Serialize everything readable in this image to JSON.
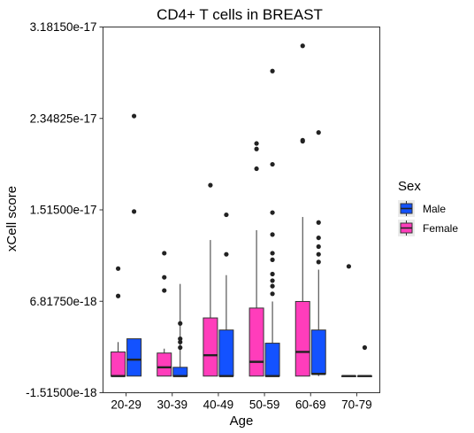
{
  "chart_data": {
    "type": "boxplot",
    "title": "CD4+ T cells in BREAST",
    "xlabel": "Age",
    "ylabel": "xCell score",
    "categories": [
      "20-29",
      "30-39",
      "40-49",
      "50-59",
      "60-69",
      "70-79"
    ],
    "yticks": [
      {
        "value": -1.515e-18,
        "label": "-1.51500e-18"
      },
      {
        "value": 6.8175e-18,
        "label": "6.81750e-18"
      },
      {
        "value": 1.515e-17,
        "label": "1.51500e-17"
      },
      {
        "value": 2.34825e-17,
        "label": "2.34825e-17"
      },
      {
        "value": 3.1815e-17,
        "label": "3.18150e-17"
      }
    ],
    "ylim": [
      -1.515e-18,
      3.1815e-17
    ],
    "legend": {
      "title": "Sex",
      "position": "right",
      "entries": [
        {
          "label": "Male",
          "color": "#1352FF"
        },
        {
          "label": "Female",
          "color": "#FF3DBB"
        }
      ]
    },
    "series": [
      {
        "name": "Female",
        "color": "#FF3DBB",
        "boxes": [
          {
            "category": "20-29",
            "q1": 0.0,
            "median": 0.0,
            "q3": 2.2e-18,
            "whisker_low": 0.0,
            "whisker_high": 3.1e-18,
            "outliers": [
              7.3e-18,
              9.8e-18
            ]
          },
          {
            "category": "30-39",
            "q1": 0.0,
            "median": 8e-19,
            "q3": 2.1e-18,
            "whisker_low": 0.0,
            "whisker_high": 2.5e-18,
            "outliers": [
              7.8e-18,
              9e-18,
              1.12e-17
            ]
          },
          {
            "category": "40-49",
            "q1": 0.0,
            "median": 1.9e-18,
            "q3": 5.3e-18,
            "whisker_low": 0.0,
            "whisker_high": 1.24e-17,
            "outliers": [
              1.74e-17
            ]
          },
          {
            "category": "50-59",
            "q1": 0.0,
            "median": 1.3e-18,
            "q3": 6.2e-18,
            "whisker_low": 0.0,
            "whisker_high": 1.33e-17,
            "outliers": [
              1.89e-17,
              2.07e-17,
              2.12e-17
            ]
          },
          {
            "category": "60-69",
            "q1": 0.0,
            "median": 2.2e-18,
            "q3": 6.8e-18,
            "whisker_low": 0.0,
            "whisker_high": 1.45e-17,
            "outliers": [
              2.14e-17,
              2.15e-17,
              3.01e-17
            ]
          },
          {
            "category": "70-79",
            "q1": 0.0,
            "median": 0.0,
            "q3": 0.0,
            "whisker_low": 0.0,
            "whisker_high": 0.0,
            "outliers": [
              1e-17
            ]
          }
        ]
      },
      {
        "name": "Male",
        "color": "#1352FF",
        "boxes": [
          {
            "category": "20-29",
            "q1": 0.0,
            "median": 1.5e-18,
            "q3": 3.4e-18,
            "whisker_low": 0.0,
            "whisker_high": 3.4e-18,
            "outliers": [
              1.5e-17,
              2.37e-17
            ]
          },
          {
            "category": "30-39",
            "q1": 0.0,
            "median": 0.0,
            "q3": 8e-19,
            "whisker_low": 0.0,
            "whisker_high": 8.4e-18,
            "outliers": [
              2.6e-18,
              3.1e-18,
              3.4e-18,
              4.8e-18
            ]
          },
          {
            "category": "40-49",
            "q1": 0.0,
            "median": 0.0,
            "q3": 4.2e-18,
            "whisker_low": 0.0,
            "whisker_high": 9.2e-18,
            "outliers": [
              1.11e-17,
              1.47e-17
            ]
          },
          {
            "category": "50-59",
            "q1": 0.0,
            "median": 0.0,
            "q3": 3e-18,
            "whisker_low": 0.0,
            "whisker_high": 6.8e-18,
            "outliers": [
              7.5e-18,
              8.2e-18,
              8.7e-18,
              9.3e-18,
              1.06e-17,
              1.12e-17,
              1.29e-17,
              1.49e-17,
              1.93e-17,
              2.78e-17
            ]
          },
          {
            "category": "60-69",
            "q1": 2e-19,
            "median": 2e-19,
            "q3": 4.2e-18,
            "whisker_low": 0.0,
            "whisker_high": 9.7e-18,
            "outliers": [
              1.04e-17,
              1.11e-17,
              1.18e-17,
              1.26e-17,
              1.4e-17,
              2.22e-17
            ]
          },
          {
            "category": "70-79",
            "q1": 0.0,
            "median": 0.0,
            "q3": 0.0,
            "whisker_low": 0.0,
            "whisker_high": 0.0,
            "outliers": [
              2.6e-18
            ]
          }
        ]
      }
    ]
  }
}
